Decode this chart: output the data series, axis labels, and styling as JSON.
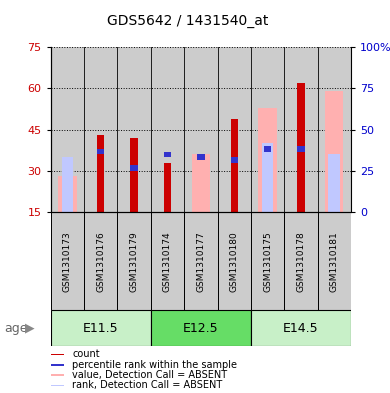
{
  "title": "GDS5642 / 1431540_at",
  "samples": [
    "GSM1310173",
    "GSM1310176",
    "GSM1310179",
    "GSM1310174",
    "GSM1310177",
    "GSM1310180",
    "GSM1310175",
    "GSM1310178",
    "GSM1310181"
  ],
  "age_groups": [
    {
      "label": "E11.5",
      "start": 0,
      "end": 3,
      "color": "#c8f0c8"
    },
    {
      "label": "E12.5",
      "start": 3,
      "end": 6,
      "color": "#66dd66"
    },
    {
      "label": "E14.5",
      "start": 6,
      "end": 9,
      "color": "#c8f0c8"
    }
  ],
  "red_bars": [
    null,
    43,
    42,
    33,
    null,
    49,
    null,
    62,
    null
  ],
  "blue_bars": [
    null,
    37,
    31,
    36,
    35,
    34,
    38,
    38,
    null
  ],
  "pink_bars": [
    28,
    null,
    null,
    null,
    36,
    null,
    53,
    null,
    59
  ],
  "lightblue_bars": [
    35,
    null,
    null,
    null,
    null,
    null,
    40,
    null,
    36
  ],
  "left_ylim": [
    15,
    75
  ],
  "right_ylim": [
    0,
    100
  ],
  "left_yticks": [
    15,
    30,
    45,
    60,
    75
  ],
  "right_yticks": [
    0,
    25,
    50,
    75,
    100
  ],
  "right_yticklabels": [
    "0",
    "25",
    "50",
    "75",
    "100%"
  ],
  "left_color": "#cc0000",
  "right_color": "#0000cc",
  "col_bg": "#cccccc",
  "legend_colors": [
    "#cc0000",
    "#3333cc",
    "#ffb0b0",
    "#c0c8ff"
  ],
  "legend_labels": [
    "count",
    "percentile rank within the sample",
    "value, Detection Call = ABSENT",
    "rank, Detection Call = ABSENT"
  ]
}
